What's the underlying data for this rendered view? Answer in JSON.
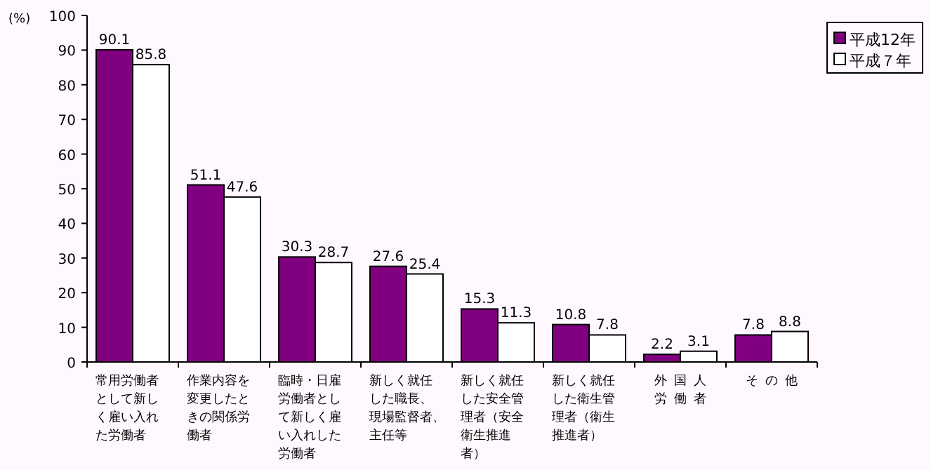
{
  "chart_data": {
    "type": "bar",
    "ylabel": "(%)",
    "categories": [
      "常用労働者として新しく雇い入れた労働者",
      "作業内容を変更したときの関係労働者",
      "臨時・日雇労働者として新しく雇い入れした労働者",
      "新しく就任した職長、現場監督者、主任等",
      "新しく就任した安全管理者（安全衛生推進者）",
      "新しく就任した衛生管理者（衛生推進者）",
      "外国人労働者",
      "その他"
    ],
    "series": [
      {
        "name": "平成12年",
        "color": "#800080",
        "values": [
          90.1,
          51.1,
          30.3,
          27.6,
          15.3,
          10.8,
          2.2,
          7.8
        ]
      },
      {
        "name": "平成７年",
        "color": "#ffffff",
        "values": [
          85.8,
          47.6,
          28.7,
          25.4,
          11.3,
          7.8,
          3.1,
          8.8
        ]
      }
    ],
    "ylim": [
      0,
      100
    ],
    "yticks": [
      0,
      10,
      20,
      30,
      40,
      50,
      60,
      70,
      80,
      90,
      100
    ],
    "data_labels": true,
    "legend": "top right",
    "grid": false
  }
}
